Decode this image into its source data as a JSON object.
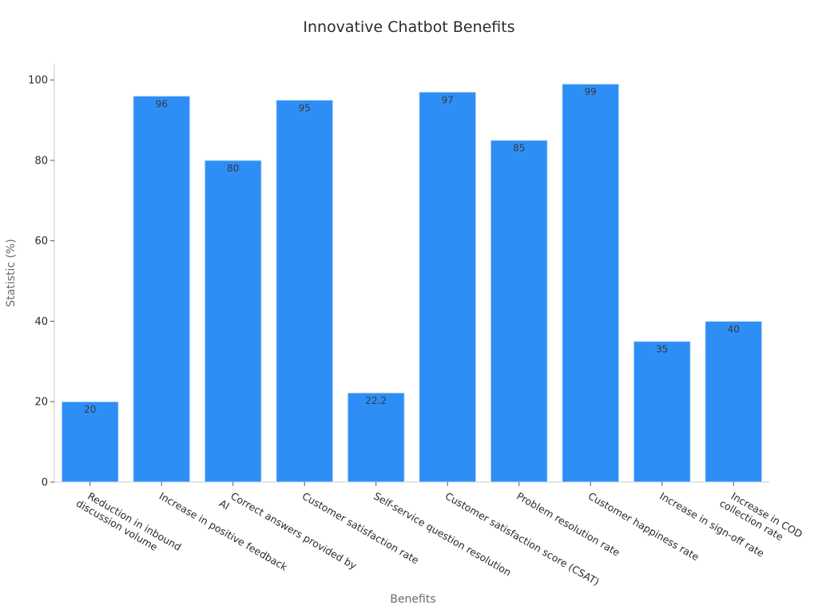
{
  "chart_data": {
    "type": "bar",
    "title": "Innovative Chatbot Benefits",
    "xlabel": "Benefits",
    "ylabel": "Statistic (%)",
    "ylim": [
      0,
      104
    ],
    "yticks": [
      0,
      20,
      40,
      60,
      80,
      100
    ],
    "grid": false,
    "bar_color": "#2d8ff5",
    "categories": [
      [
        "Reduction in inbound",
        "discussion volume"
      ],
      [
        "Increase in positive feedback"
      ],
      [
        "Correct answers provided by",
        "AI"
      ],
      [
        "Customer satisfaction rate"
      ],
      [
        "Self-service question resolution"
      ],
      [
        "Customer satisfaction score (CSAT)"
      ],
      [
        "Problem resolution rate"
      ],
      [
        "Customer happiness rate"
      ],
      [
        "Increase in sign-off rate"
      ],
      [
        "Increase in COD",
        "collection rate"
      ]
    ],
    "values": [
      20,
      96,
      80,
      95,
      22.2,
      97,
      85,
      99,
      35,
      40
    ],
    "value_labels": [
      "20",
      "96",
      "80",
      "95",
      "22.2",
      "97",
      "85",
      "99",
      "35",
      "40"
    ]
  }
}
